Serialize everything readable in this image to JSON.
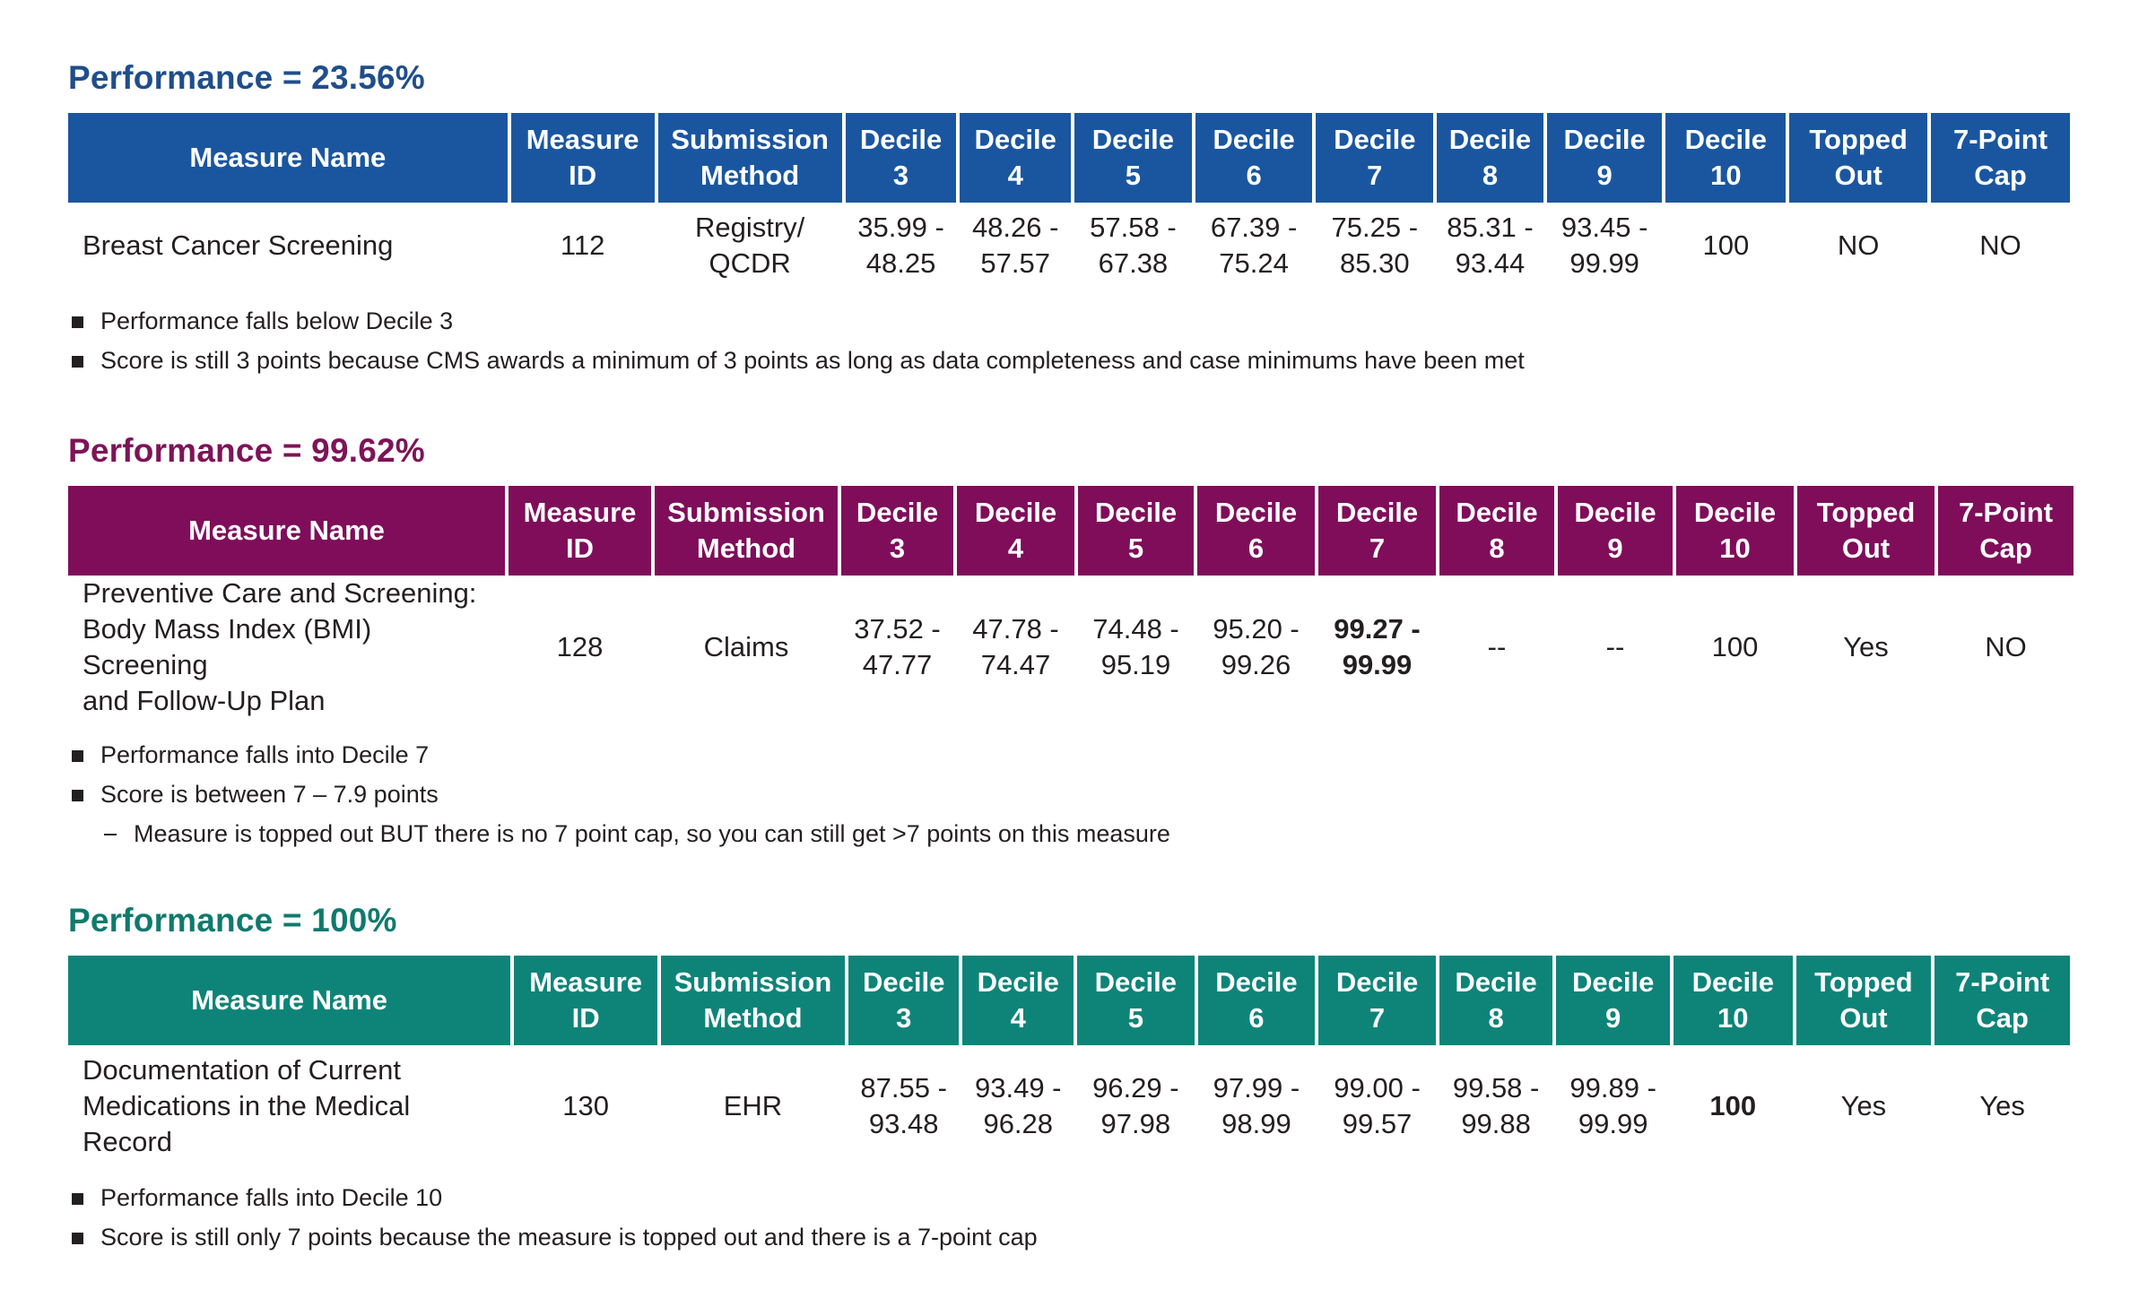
{
  "sections": [
    {
      "title": "Performance = 23.56%",
      "accent": "#1a56a0",
      "headers": [
        [
          "Measure Name"
        ],
        [
          "Measure",
          "ID"
        ],
        [
          "Submission",
          "Method"
        ],
        [
          "Decile",
          "3"
        ],
        [
          "Decile",
          "4"
        ],
        [
          "Decile",
          "5"
        ],
        [
          "Decile",
          "6"
        ],
        [
          "Decile",
          "7"
        ],
        [
          "Decile",
          "8"
        ],
        [
          "Decile",
          "9"
        ],
        [
          "Decile",
          "10"
        ],
        [
          "Topped",
          "Out"
        ],
        [
          "7-Point",
          "Cap"
        ]
      ],
      "row": [
        [
          "Breast Cancer Screening"
        ],
        [
          "112"
        ],
        [
          "Registry/",
          "QCDR"
        ],
        [
          "35.99 -",
          "48.25"
        ],
        [
          "48.26 -",
          "57.57"
        ],
        [
          "57.58 -",
          "67.38"
        ],
        [
          "67.39 -",
          "75.24"
        ],
        [
          "75.25 -",
          "85.30"
        ],
        [
          "85.31 -",
          "93.44"
        ],
        [
          "93.45 -",
          "99.99"
        ],
        [
          "100"
        ],
        [
          "NO"
        ],
        [
          "NO"
        ]
      ],
      "highlight_col": -1,
      "notes": [
        {
          "text": "Performance falls below Decile 3",
          "sub": false
        },
        {
          "text": "Score is still 3 points because CMS awards a minimum of 3 points as long as data completeness and case minimums have been met",
          "sub": false
        }
      ]
    },
    {
      "title": "Performance = 99.62%",
      "accent": "#7f0d5a",
      "headers": [
        [
          "Measure Name"
        ],
        [
          "Measure",
          "ID"
        ],
        [
          "Submission",
          "Method"
        ],
        [
          "Decile",
          "3"
        ],
        [
          "Decile",
          "4"
        ],
        [
          "Decile",
          "5"
        ],
        [
          "Decile",
          "6"
        ],
        [
          "Decile",
          "7"
        ],
        [
          "Decile",
          "8"
        ],
        [
          "Decile",
          "9"
        ],
        [
          "Decile",
          "10"
        ],
        [
          "Topped",
          "Out"
        ],
        [
          "7-Point",
          "Cap"
        ]
      ],
      "row": [
        [
          "Preventive Care and Screening:",
          "Body Mass Index (BMI) Screening",
          "and Follow-Up Plan"
        ],
        [
          "128"
        ],
        [
          "Claims"
        ],
        [
          "37.52 -",
          "47.77"
        ],
        [
          "47.78 -",
          "74.47"
        ],
        [
          "74.48 -",
          "95.19"
        ],
        [
          "95.20 -",
          "99.26"
        ],
        [
          "99.27 -",
          "99.99"
        ],
        [
          "--"
        ],
        [
          "--"
        ],
        [
          "100"
        ],
        [
          "Yes"
        ],
        [
          "NO"
        ]
      ],
      "highlight_col": 7,
      "notes": [
        {
          "text": "Performance falls into Decile 7",
          "sub": false
        },
        {
          "text": "Score is between 7 – 7.9 points",
          "sub": false
        },
        {
          "text": "Measure is topped out BUT there is no 7 point cap, so you can still get >7 points on this measure",
          "sub": true
        }
      ]
    },
    {
      "title": "Performance = 100%",
      "accent": "#0e8478",
      "headers": [
        [
          "Measure Name"
        ],
        [
          "Measure",
          "ID"
        ],
        [
          "Submission",
          "Method"
        ],
        [
          "Decile",
          "3"
        ],
        [
          "Decile",
          "4"
        ],
        [
          "Decile",
          "5"
        ],
        [
          "Decile",
          "6"
        ],
        [
          "Decile",
          "7"
        ],
        [
          "Decile",
          "8"
        ],
        [
          "Decile",
          "9"
        ],
        [
          "Decile",
          "10"
        ],
        [
          "Topped",
          "Out"
        ],
        [
          "7-Point",
          "Cap"
        ]
      ],
      "row": [
        [
          "Documentation of Current",
          "Medications in the Medical Record"
        ],
        [
          "130"
        ],
        [
          "EHR"
        ],
        [
          "87.55 -",
          "93.48"
        ],
        [
          "93.49 -",
          "96.28"
        ],
        [
          "96.29 -",
          "97.98"
        ],
        [
          "97.99 -",
          "98.99"
        ],
        [
          "99.00 -",
          "99.57"
        ],
        [
          "99.58 -",
          "99.88"
        ],
        [
          "99.89 -",
          "99.99"
        ],
        [
          "100"
        ],
        [
          "Yes"
        ],
        [
          "Yes"
        ]
      ],
      "highlight_col": 10,
      "notes": [
        {
          "text": "Performance falls into Decile 10",
          "sub": false
        },
        {
          "text": "Score is still only 7 points because the measure is topped out and there is a 7-point cap",
          "sub": false
        }
      ]
    }
  ]
}
